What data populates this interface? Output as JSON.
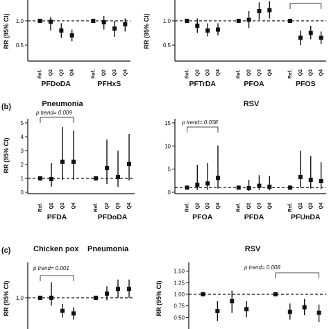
{
  "page": {
    "background": "#ffffff",
    "marker_color": "#111111",
    "reference_line_color": "#111111"
  },
  "chart_data": [
    {
      "id": "a_left",
      "type": "scatter",
      "title": "",
      "ylabel": "RR (95% CI)",
      "ylim": [
        0.2,
        1.4
      ],
      "yticks": [
        0.5,
        1.0
      ],
      "groups": [
        {
          "name": "PFDoDA",
          "cats": [
            "Ref.",
            "Q2",
            "Q3",
            "Q4"
          ],
          "values": [
            1.0,
            0.98,
            0.8,
            0.7
          ],
          "lower": [
            1.0,
            0.8,
            0.65,
            0.58
          ],
          "upper": [
            1.0,
            1.08,
            0.95,
            0.82
          ]
        },
        {
          "name": "PFHxS",
          "cats": [
            "Ref.",
            "Q2",
            "Q3",
            "Q4"
          ],
          "values": [
            1.0,
            0.97,
            0.84,
            0.93
          ],
          "lower": [
            1.0,
            0.82,
            0.67,
            0.78
          ],
          "upper": [
            1.0,
            1.1,
            1.0,
            1.05
          ]
        }
      ]
    },
    {
      "id": "a_right",
      "type": "scatter",
      "title": "",
      "ylabel": "RR (95% CI)",
      "ylim": [
        0.2,
        1.4
      ],
      "yticks": [
        0.5,
        1.0
      ],
      "groups": [
        {
          "name": "PFTrDA",
          "cats": [
            "Ref.",
            "Q2",
            "Q3",
            "Q4"
          ],
          "values": [
            1.0,
            0.9,
            0.8,
            0.82
          ],
          "lower": [
            1.0,
            0.75,
            0.68,
            0.7
          ],
          "upper": [
            1.0,
            1.05,
            0.95,
            0.95
          ]
        },
        {
          "name": "PFOA",
          "cats": [
            "Ref.",
            "Q2",
            "Q3",
            "Q4"
          ],
          "values": [
            1.0,
            1.02,
            1.2,
            1.22
          ],
          "lower": [
            1.0,
            0.85,
            1.02,
            1.05
          ],
          "upper": [
            1.0,
            1.2,
            1.38,
            1.4
          ]
        },
        {
          "name": "PFOS",
          "cats": [
            "Ref.",
            "Q2",
            "Q3",
            "Q4"
          ],
          "values": [
            1.0,
            0.65,
            0.75,
            0.65
          ],
          "lower": [
            1.0,
            0.5,
            0.62,
            0.52
          ],
          "upper": [
            1.0,
            0.8,
            0.9,
            0.78
          ]
        }
      ]
    },
    {
      "id": "b_left",
      "type": "scatter",
      "title": "Pneumonia",
      "ylabel": "RR (95% CI)",
      "ylim": [
        0,
        5
      ],
      "yticks": [
        0,
        1,
        2,
        3,
        4,
        5
      ],
      "annotation": "p trend= 0.009",
      "groups": [
        {
          "name": "PFDA",
          "cats": [
            "Ref.",
            "Q2",
            "Q3",
            "Q4"
          ],
          "values": [
            1.0,
            0.95,
            2.2,
            2.2
          ],
          "lower": [
            1.0,
            0.4,
            0.9,
            0.9
          ],
          "upper": [
            1.0,
            2.1,
            4.7,
            4.45
          ]
        },
        {
          "name": "PFDoDA",
          "cats": [
            "Ref.",
            "Q2",
            "Q3",
            "Q4"
          ],
          "values": [
            1.0,
            1.75,
            1.1,
            2.05
          ],
          "lower": [
            1.0,
            0.6,
            0.4,
            0.85
          ],
          "upper": [
            1.0,
            3.8,
            3.0,
            4.2
          ]
        }
      ]
    },
    {
      "id": "b_right",
      "type": "scatter",
      "title": "RSV",
      "ylabel": "",
      "ylim": [
        0,
        15
      ],
      "yticks": [
        0,
        5,
        10,
        15
      ],
      "annotation": "p trend= 0.038",
      "groups": [
        {
          "name": "PFOA",
          "cats": [
            "Ref.",
            "Q2",
            "Q3",
            "Q4"
          ],
          "values": [
            1.0,
            1.6,
            1.9,
            3.1
          ],
          "lower": [
            1.0,
            0.5,
            0.5,
            0.8
          ],
          "upper": [
            1.0,
            5.9,
            6.3,
            10.1
          ]
        },
        {
          "name": "PFDA",
          "cats": [
            "Ref.",
            "Q2",
            "Q3",
            "Q4"
          ],
          "values": [
            1.0,
            0.9,
            1.4,
            1.2
          ],
          "lower": [
            1.0,
            0.3,
            0.5,
            0.4
          ],
          "upper": [
            1.0,
            2.7,
            3.7,
            3.5
          ]
        },
        {
          "name": "PFUnDA",
          "cats": [
            "Ref.",
            "Q2",
            "Q3",
            "Q4"
          ],
          "values": [
            1.0,
            3.3,
            2.7,
            2.4
          ],
          "lower": [
            1.0,
            1.0,
            0.8,
            0.7
          ],
          "upper": [
            1.0,
            9.0,
            7.8,
            6.5
          ]
        }
      ]
    },
    {
      "id": "c_left",
      "type": "scatter",
      "title": "",
      "ylabel": "RR (95% CI)",
      "ylim": [
        0.4,
        1.6
      ],
      "yticks": [
        1.0
      ],
      "headers": [
        "Chicken pox",
        "Pneumonia"
      ],
      "annotation": "p trend= 0.001",
      "groups": [
        {
          "name": "",
          "cats": [],
          "values": [
            1.0,
            1.0,
            0.75,
            0.7
          ],
          "lower": [
            1.0,
            0.85,
            0.62,
            0.58
          ],
          "upper": [
            1.0,
            1.3,
            0.88,
            0.82
          ]
        },
        {
          "name": "",
          "cats": [],
          "values": [
            1.0,
            1.08,
            1.17,
            1.17
          ],
          "lower": [
            1.0,
            0.95,
            1.0,
            1.0
          ],
          "upper": [
            1.0,
            1.22,
            1.35,
            1.35
          ]
        }
      ]
    },
    {
      "id": "c_right",
      "type": "scatter",
      "title": "RSV",
      "ylabel": "RR (95% CI)",
      "ylim": [
        0.25,
        1.6
      ],
      "yticks": [
        0.5,
        0.75,
        1.0,
        1.25,
        1.5
      ],
      "annotation": "p trend= 0.008",
      "groups": [
        {
          "name": "",
          "cats": [],
          "values": [
            1.0,
            0.64,
            0.85,
            0.68
          ],
          "lower": [
            1.0,
            0.42,
            0.6,
            0.5
          ],
          "upper": [
            1.0,
            0.85,
            1.08,
            0.85
          ]
        },
        {
          "name": "",
          "cats": [],
          "values": [
            1.0,
            0.62,
            0.72,
            0.6
          ],
          "lower": [
            1.0,
            0.45,
            0.55,
            0.4
          ],
          "upper": [
            1.0,
            0.8,
            0.9,
            0.78
          ]
        }
      ]
    }
  ],
  "panel_labels": {
    "b": "(b)",
    "c": "(c)"
  }
}
